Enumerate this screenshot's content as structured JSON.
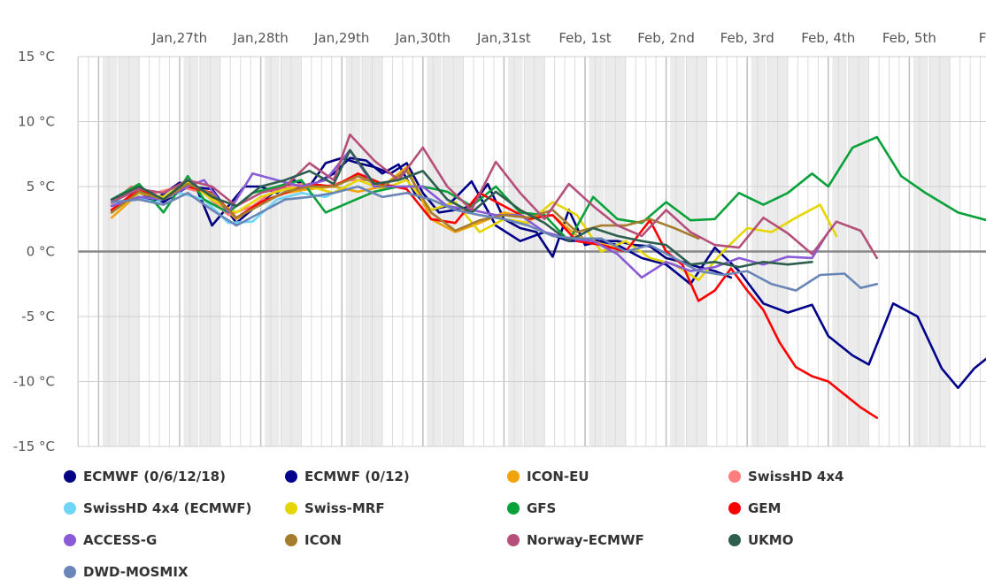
{
  "chart_data": {
    "type": "line",
    "title": "",
    "xlabel": "",
    "ylabel": "",
    "ylim": [
      -15,
      15
    ],
    "y_ticks": [
      15,
      10,
      5,
      0,
      -5,
      -10,
      -15
    ],
    "y_tick_labels": [
      "15 °C",
      "10 °C",
      "5 °C",
      "0 °C",
      "-5 °C",
      "-10 °C",
      "-15 °C"
    ],
    "x_tick_labels": [
      "Jan,27th",
      "Jan,28th",
      "Jan,29th",
      "Jan,30th",
      "Jan,31st",
      "Feb, 1st",
      "Feb, 2nd",
      "Feb, 3rd",
      "Feb, 4th",
      "Feb, 5th",
      "Feb"
    ],
    "x_unit": "days from first tick",
    "x_range": [
      -0.84,
      9.96
    ],
    "grid": true,
    "legend_position": "bottom",
    "series": [
      {
        "name": "ECMWF (0/6/12/18)",
        "color": "#000080",
        "x": [
          -0.84,
          -0.6,
          -0.3,
          0,
          0.2,
          0.4,
          0.6,
          0.8,
          1.0,
          1.2,
          1.4,
          1.6,
          1.8,
          2.0,
          2.2,
          2.4,
          2.6,
          2.8,
          3.0,
          3.2,
          3.4,
          3.6,
          3.8,
          4.0,
          4.2,
          4.4,
          4.6,
          4.8,
          5.0,
          5.2,
          5.4,
          5.6,
          5.8,
          6.0,
          6.2,
          6.4,
          6.6,
          6.8
        ],
        "values": [
          3.0,
          4.2,
          4.0,
          5.3,
          5.0,
          2.0,
          3.5,
          5.0,
          5.0,
          4.5,
          5.5,
          5.0,
          6.8,
          7.2,
          6.8,
          6.5,
          6.0,
          6.8,
          4.5,
          3.0,
          3.2,
          3.5,
          5.2,
          2.5,
          1.8,
          1.5,
          -0.4,
          3.2,
          0.5,
          0.8,
          0.8,
          0.5,
          0.4,
          -0.5,
          -0.8,
          -1.2,
          -1.5,
          -2.0
        ]
      },
      {
        "name": "ECMWF (0/12)",
        "color": "#00008b",
        "x": [
          -0.84,
          -0.5,
          -0.2,
          0.1,
          0.4,
          0.7,
          1.0,
          1.3,
          1.6,
          1.9,
          2.1,
          2.3,
          2.5,
          2.7,
          2.9,
          3.1,
          3.3,
          3.6,
          3.9,
          4.2,
          4.5,
          4.8,
          5.1,
          5.4,
          5.7,
          6.0,
          6.3,
          6.6,
          6.9,
          7.2,
          7.5,
          7.8,
          8.0,
          8.3,
          8.5,
          8.8,
          9.1,
          9.4,
          9.6,
          9.8,
          9.96
        ],
        "values": [
          3.2,
          4.5,
          3.8,
          5.0,
          4.8,
          2.2,
          3.8,
          5.2,
          5.0,
          6.0,
          7.2,
          7.0,
          6.0,
          6.7,
          4.5,
          3.2,
          3.5,
          5.4,
          2.0,
          0.8,
          1.5,
          0.8,
          0.9,
          0.5,
          -0.5,
          -1.0,
          -2.5,
          0.3,
          -1.5,
          -4.0,
          -4.7,
          -4.1,
          -6.5,
          -8.0,
          -8.7,
          -4.0,
          -5.0,
          -9.0,
          -10.5,
          -9.0,
          -8.2
        ]
      },
      {
        "name": "ICON-EU",
        "color": "#f0a30a",
        "x": [
          -0.84,
          -0.5,
          -0.2,
          0.1,
          0.4,
          0.7,
          1.0,
          1.3,
          1.6,
          1.9,
          2.2,
          2.5,
          2.8,
          3.1,
          3.4,
          3.7,
          4.0,
          4.3,
          4.6,
          4.9,
          5.2,
          5.5
        ],
        "values": [
          2.6,
          4.5,
          4.0,
          5.2,
          4.2,
          2.5,
          3.8,
          4.5,
          4.8,
          5.0,
          4.6,
          5.0,
          6.5,
          2.5,
          1.5,
          2.2,
          3.0,
          2.6,
          2.8,
          1.2,
          0.6,
          0.0
        ]
      },
      {
        "name": "SwissHD 4x4",
        "color": "#ff7f7f",
        "x": [
          -0.84,
          -0.6,
          -0.3,
          0,
          0.3,
          0.6,
          0.9,
          1.2,
          1.5,
          1.8,
          2.1,
          2.4
        ],
        "values": [
          3.6,
          5.0,
          4.5,
          5.0,
          4.5,
          2.8,
          3.5,
          4.8,
          5.2,
          5.0,
          5.5,
          5.5
        ]
      },
      {
        "name": "SwissHD 4x4 (ECMWF)",
        "color": "#6fd5f5",
        "x": [
          -0.84,
          -0.6,
          -0.3,
          0,
          0.3,
          0.6,
          0.9,
          1.2,
          1.5,
          1.8,
          2.1
        ],
        "values": [
          3.5,
          4.2,
          3.8,
          4.5,
          4.0,
          2.2,
          2.3,
          4.0,
          4.5,
          4.2,
          5.2
        ]
      },
      {
        "name": "Swiss-MRF",
        "color": "#e5d600",
        "x": [
          -0.84,
          -0.5,
          -0.2,
          0.1,
          0.4,
          0.7,
          1.0,
          1.3,
          1.6,
          1.9,
          2.2,
          2.5,
          2.8,
          3.1,
          3.4,
          3.7,
          4.0,
          4.3,
          4.6,
          4.9,
          5.2,
          5.5,
          5.8,
          6.1,
          6.4,
          6.7,
          7.0,
          7.3,
          7.6,
          7.9,
          8.1
        ],
        "values": [
          3.0,
          4.5,
          4.2,
          5.4,
          4.0,
          3.0,
          4.2,
          4.8,
          5.0,
          4.5,
          5.5,
          4.8,
          5.5,
          3.2,
          3.8,
          1.5,
          2.5,
          2.2,
          3.8,
          2.8,
          0.0,
          0.8,
          -0.5,
          -1.0,
          -2.2,
          0.0,
          1.8,
          1.5,
          2.6,
          3.6,
          1.2
        ]
      },
      {
        "name": "GFS",
        "color": "#09a13a",
        "x": [
          -0.84,
          -0.5,
          -0.2,
          0.1,
          0.3,
          0.6,
          0.9,
          1.2,
          1.5,
          1.8,
          2.1,
          2.4,
          2.7,
          3.0,
          3.3,
          3.6,
          3.9,
          4.2,
          4.5,
          4.8,
          5.1,
          5.4,
          5.7,
          6.0,
          6.3,
          6.6,
          6.9,
          7.2,
          7.5,
          7.8,
          8.0,
          8.3,
          8.6,
          8.9,
          9.2,
          9.6,
          9.96
        ],
        "values": [
          4.0,
          5.2,
          3.0,
          5.8,
          4.0,
          3.0,
          4.5,
          5.0,
          5.5,
          3.0,
          3.8,
          4.6,
          5.0,
          5.0,
          4.6,
          3.5,
          5.0,
          3.0,
          2.8,
          0.8,
          4.2,
          2.5,
          2.2,
          3.8,
          2.4,
          2.5,
          4.5,
          3.6,
          4.5,
          6.0,
          5.0,
          8.0,
          8.8,
          5.8,
          4.5,
          3.0,
          2.4
        ]
      },
      {
        "name": "GEM",
        "color": "#ff0000",
        "x": [
          -0.84,
          -0.5,
          -0.2,
          0.1,
          0.4,
          0.7,
          1.0,
          1.3,
          1.6,
          1.9,
          2.2,
          2.5,
          2.8,
          3.1,
          3.4,
          3.7,
          4.0,
          4.3,
          4.6,
          4.9,
          5.2,
          5.5,
          5.8,
          6.0,
          6.2,
          6.4,
          6.6,
          6.8,
          7.0,
          7.2,
          7.4,
          7.6,
          7.8,
          8.0,
          8.2,
          8.4,
          8.6
        ],
        "values": [
          3.2,
          4.8,
          4.0,
          5.0,
          4.5,
          2.6,
          3.8,
          4.5,
          5.2,
          5.0,
          6.0,
          5.2,
          4.8,
          2.5,
          2.2,
          4.5,
          3.5,
          2.5,
          2.8,
          0.8,
          0.5,
          0.0,
          2.4,
          0.0,
          -1.0,
          -3.8,
          -3.0,
          -1.3,
          -3.0,
          -4.5,
          -7.0,
          -8.9,
          -9.6,
          -10.0,
          -11.0,
          -12.0,
          -12.8
        ]
      },
      {
        "name": "ACCESS-G",
        "color": "#8a5bd6",
        "x": [
          -0.84,
          -0.5,
          -0.2,
          0.1,
          0.3,
          0.6,
          0.9,
          1.2,
          1.5,
          1.8,
          2.1,
          2.4,
          2.7,
          3.0,
          3.3,
          3.6,
          3.9,
          4.2,
          4.5,
          4.8,
          5.1,
          5.4,
          5.7,
          6.0,
          6.3,
          6.6,
          6.9,
          7.2,
          7.5,
          7.8,
          8.0
        ],
        "values": [
          3.5,
          4.2,
          4.0,
          5.0,
          5.5,
          3.0,
          6.0,
          5.5,
          5.0,
          5.5,
          7.8,
          5.0,
          5.0,
          5.0,
          3.5,
          3.2,
          2.8,
          2.8,
          1.5,
          1.0,
          0.8,
          -0.2,
          -2.0,
          -0.8,
          -1.5,
          -1.2,
          -0.5,
          -1.0,
          -0.4,
          -0.5,
          1.5
        ]
      },
      {
        "name": "ICON",
        "color": "#a67c2e",
        "x": [
          -0.84,
          -0.5,
          -0.2,
          0.1,
          0.4,
          0.7,
          1.0,
          1.3,
          1.6,
          1.9,
          2.2,
          2.5,
          2.8,
          3.1,
          3.4,
          3.7,
          4.0,
          4.3,
          4.6,
          4.9,
          5.2,
          5.5,
          5.8,
          6.1,
          6.4
        ],
        "values": [
          3.0,
          4.6,
          4.0,
          5.2,
          4.4,
          2.6,
          3.6,
          4.6,
          5.0,
          5.0,
          5.8,
          5.0,
          6.2,
          3.0,
          1.6,
          2.4,
          2.8,
          2.6,
          3.2,
          1.5,
          2.0,
          2.0,
          2.5,
          1.8,
          1.0
        ]
      },
      {
        "name": "Norway-ECMWF",
        "color": "#b5507a",
        "x": [
          -0.84,
          -0.5,
          -0.2,
          0.1,
          0.4,
          0.7,
          1.0,
          1.3,
          1.6,
          1.9,
          2.1,
          2.4,
          2.7,
          3.0,
          3.3,
          3.6,
          3.9,
          4.2,
          4.5,
          4.8,
          5.1,
          5.4,
          5.7,
          6.0,
          6.3,
          6.6,
          6.9,
          7.2,
          7.5,
          7.8,
          8.1,
          8.4,
          8.6
        ],
        "values": [
          3.8,
          4.8,
          4.5,
          5.5,
          5.0,
          3.5,
          4.5,
          5.0,
          6.8,
          5.5,
          9.0,
          7.0,
          5.5,
          8.0,
          5.0,
          3.2,
          6.9,
          4.5,
          2.5,
          5.2,
          3.5,
          2.0,
          1.2,
          3.2,
          1.5,
          0.5,
          0.3,
          2.6,
          1.4,
          -0.2,
          2.3,
          1.6,
          -0.5
        ]
      },
      {
        "name": "UKMO",
        "color": "#2e5e4e",
        "x": [
          -0.84,
          -0.5,
          -0.2,
          0.1,
          0.4,
          0.7,
          1.0,
          1.3,
          1.6,
          1.9,
          2.1,
          2.4,
          2.7,
          3.0,
          3.3,
          3.6,
          3.9,
          4.2,
          4.5,
          4.8,
          5.1,
          5.4,
          5.7,
          6.0,
          6.3,
          6.6,
          6.9,
          7.2,
          7.5,
          7.8
        ],
        "values": [
          4.0,
          5.0,
          4.0,
          5.5,
          4.2,
          3.5,
          5.0,
          5.5,
          6.2,
          5.2,
          7.8,
          5.2,
          5.5,
          6.2,
          4.0,
          3.0,
          4.6,
          3.2,
          2.2,
          0.8,
          1.8,
          1.2,
          0.8,
          0.5,
          -1.0,
          -0.8,
          -1.2,
          -0.8,
          -1.0,
          -0.8
        ]
      },
      {
        "name": "DWD-MOSMIX",
        "color": "#6a86b8",
        "x": [
          -0.84,
          -0.5,
          -0.2,
          0.1,
          0.4,
          0.7,
          1.0,
          1.3,
          1.6,
          1.9,
          2.2,
          2.5,
          2.8,
          3.1,
          3.4,
          3.7,
          4.0,
          4.3,
          4.6,
          4.9,
          5.2,
          5.5,
          5.8,
          6.1,
          6.4,
          6.7,
          7.0,
          7.3,
          7.6,
          7.9,
          8.2,
          8.4,
          8.6
        ],
        "values": [
          3.8,
          4.0,
          3.6,
          4.5,
          3.2,
          2.0,
          3.0,
          4.0,
          4.2,
          4.5,
          5.0,
          4.2,
          4.5,
          4.0,
          3.2,
          2.8,
          2.5,
          2.0,
          1.2,
          1.0,
          1.0,
          0.0,
          0.5,
          -0.5,
          -1.5,
          -1.8,
          -1.5,
          -2.5,
          -3.0,
          -1.8,
          -1.7,
          -2.8,
          -2.5
        ]
      }
    ]
  }
}
